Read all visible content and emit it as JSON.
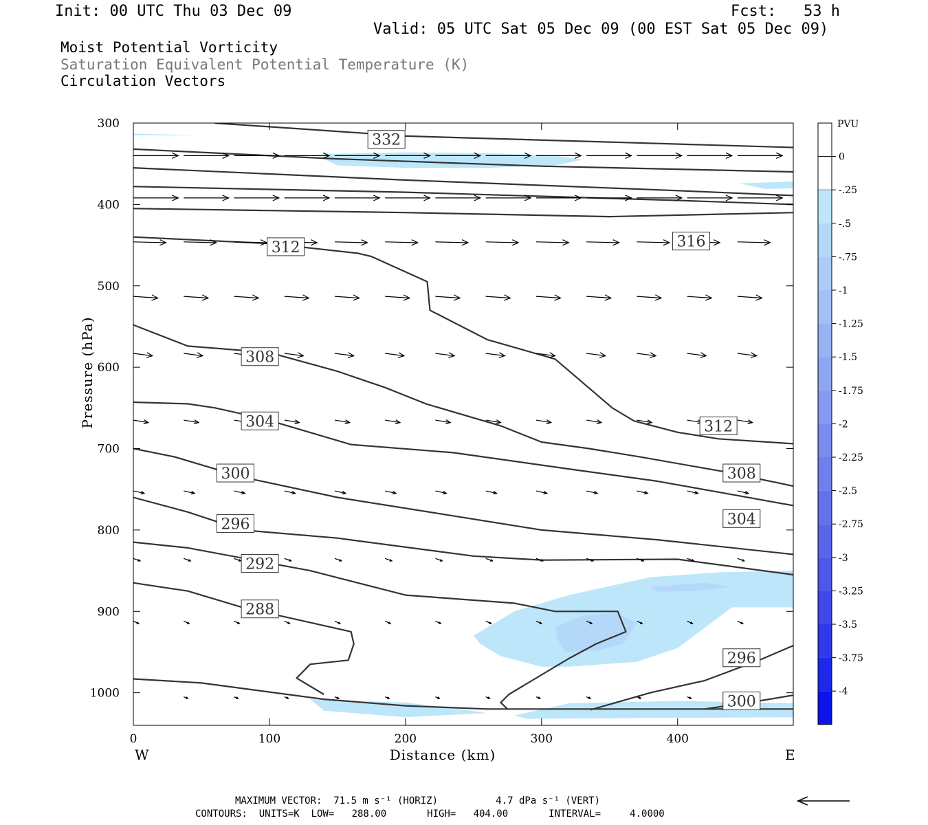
{
  "header": {
    "init": "Init: 00 UTC Thu 03 Dec 09",
    "fcst": "Fcst:   53 h",
    "valid": "Valid: 05 UTC Sat 05 Dec 09 (00 EST Sat 05 Dec 09)"
  },
  "titles": {
    "line1": "Moist Potential Vorticity",
    "line2": "Saturation Equivalent Potential Temperature (K)",
    "line3": "Circulation Vectors"
  },
  "footer": {
    "max_vector": "MAXIMUM VECTOR:  71.5 m s⁻¹ (HORIZ)          4.7 dPa s⁻¹ (VERT)",
    "contours": "CONTOURS:  UNITS=K  LOW=   288.00       HIGH=   404.00       INTERVAL=     4.0000"
  },
  "colors": {
    "mpv_light": "#bde6fb",
    "mpv_mid": "#a8c6f5",
    "contour": "#333333",
    "vector": "#000000"
  },
  "chart_data": {
    "type": "cross-section",
    "xlabel": "Distance (km)",
    "ylabel": "Pressure (hPa)",
    "xlim": [
      0,
      485
    ],
    "ylim": [
      1040,
      300
    ],
    "x_ticks": [
      0,
      100,
      200,
      300,
      400
    ],
    "y_ticks": [
      300,
      400,
      500,
      600,
      700,
      800,
      900,
      1000
    ],
    "end_labels": {
      "left": "W",
      "right": "E"
    },
    "colorbar": {
      "units": "PVU",
      "labels": [
        "0",
        "-.25",
        "-.5",
        "-.75",
        "-1",
        "-1.25",
        "-1.5",
        "-1.75",
        "-2",
        "-2.25",
        "-2.5",
        "-2.75",
        "-3",
        "-3.25",
        "-3.5",
        "-3.75",
        "-4"
      ],
      "colors": [
        "#ffffff",
        "#ffffff",
        "#bde6fb",
        "#b4d8f9",
        "#abccf7",
        "#a2c0f5",
        "#98b3f3",
        "#8ea6f1",
        "#8499ef",
        "#7a8ced",
        "#6f7fec",
        "#6472ea",
        "#5965e9",
        "#4d57e8",
        "#3f49e8",
        "#2f39e9",
        "#1e28ea",
        "#0a14eb"
      ]
    },
    "mpv_regions": [
      {
        "level": "-.25",
        "points": [
          [
            0,
            313
          ],
          [
            50,
            315
          ],
          [
            0,
            315
          ]
        ]
      },
      {
        "level": "-.25",
        "points": [
          [
            140,
            338
          ],
          [
            200,
            336
          ],
          [
            260,
            337
          ],
          [
            310,
            340
          ],
          [
            330,
            345
          ],
          [
            310,
            352
          ],
          [
            260,
            355
          ],
          [
            200,
            355
          ],
          [
            150,
            352
          ],
          [
            140,
            344
          ]
        ]
      },
      {
        "level": "-.25",
        "points": [
          [
            445,
            374
          ],
          [
            485,
            372
          ],
          [
            485,
            380
          ],
          [
            465,
            381
          ]
        ]
      },
      {
        "level": "-.25",
        "points": [
          [
            250,
            930
          ],
          [
            280,
            900
          ],
          [
            320,
            880
          ],
          [
            380,
            858
          ],
          [
            430,
            852
          ],
          [
            485,
            850
          ],
          [
            485,
            895
          ],
          [
            440,
            895
          ],
          [
            420,
            920
          ],
          [
            400,
            945
          ],
          [
            370,
            962
          ],
          [
            320,
            968
          ],
          [
            300,
            968
          ],
          [
            270,
            955
          ],
          [
            255,
            940
          ]
        ]
      },
      {
        "level": "-.5",
        "points": [
          [
            310,
            920
          ],
          [
            330,
            905
          ],
          [
            355,
            902
          ],
          [
            370,
            915
          ],
          [
            360,
            940
          ],
          [
            340,
            948
          ],
          [
            318,
            950
          ],
          [
            312,
            935
          ]
        ]
      },
      {
        "level": "-.5",
        "points": [
          [
            380,
            870
          ],
          [
            420,
            865
          ],
          [
            440,
            870
          ],
          [
            410,
            875
          ],
          [
            385,
            876
          ]
        ]
      },
      {
        "level": "-.25",
        "points": [
          [
            130,
            1008
          ],
          [
            200,
            1012
          ],
          [
            240,
            1020
          ],
          [
            260,
            1025
          ],
          [
            200,
            1030
          ],
          [
            140,
            1022
          ]
        ]
      },
      {
        "level": "-.25",
        "points": [
          [
            280,
            1028
          ],
          [
            320,
            1013
          ],
          [
            400,
            1010
          ],
          [
            485,
            1013
          ],
          [
            485,
            1030
          ],
          [
            290,
            1032
          ]
        ]
      }
    ],
    "contours": [
      {
        "points": [
          [
            60,
            300
          ],
          [
            200,
            316
          ],
          [
            485,
            330
          ]
        ]
      },
      {
        "points": [
          [
            0,
            332
          ],
          [
            150,
            344
          ],
          [
            300,
            353
          ],
          [
            485,
            360
          ]
        ]
      },
      {
        "points": [
          [
            0,
            355
          ],
          [
            200,
            370
          ],
          [
            400,
            383
          ],
          [
            485,
            389
          ]
        ]
      },
      {
        "points": [
          [
            0,
            378
          ],
          [
            200,
            385
          ],
          [
            400,
            395
          ],
          [
            485,
            400
          ]
        ]
      },
      {
        "points": [
          [
            0,
            405
          ],
          [
            200,
            410
          ],
          [
            350,
            415
          ],
          [
            485,
            410
          ]
        ]
      },
      {
        "points": [
          [
            0,
            440
          ],
          [
            100,
            448
          ],
          [
            165,
            460
          ],
          [
            175,
            464
          ],
          [
            216,
            495
          ],
          [
            218,
            530
          ],
          [
            260,
            566
          ],
          [
            310,
            590
          ],
          [
            352,
            650
          ],
          [
            368,
            666
          ],
          [
            400,
            680
          ],
          [
            430,
            688
          ],
          [
            485,
            694
          ]
        ]
      },
      {
        "points": [
          [
            0,
            548
          ],
          [
            40,
            574
          ],
          [
            100,
            582
          ],
          [
            150,
            605
          ],
          [
            185,
            625
          ],
          [
            215,
            645
          ],
          [
            270,
            672
          ],
          [
            300,
            692
          ],
          [
            335,
            700
          ],
          [
            372,
            710
          ],
          [
            433,
            728
          ],
          [
            485,
            746
          ]
        ]
      },
      {
        "points": [
          [
            0,
            643
          ],
          [
            40,
            645
          ],
          [
            60,
            650
          ],
          [
            95,
            663
          ],
          [
            160,
            695
          ],
          [
            235,
            705
          ],
          [
            320,
            725
          ],
          [
            385,
            740
          ],
          [
            435,
            755
          ],
          [
            485,
            770
          ]
        ]
      },
      {
        "points": [
          [
            0,
            700
          ],
          [
            30,
            710
          ],
          [
            80,
            735
          ],
          [
            150,
            760
          ],
          [
            225,
            780
          ],
          [
            300,
            800
          ],
          [
            385,
            812
          ],
          [
            485,
            830
          ]
        ]
      },
      {
        "points": [
          [
            0,
            760
          ],
          [
            40,
            778
          ],
          [
            80,
            800
          ],
          [
            150,
            810
          ],
          [
            250,
            832
          ],
          [
            300,
            837
          ],
          [
            400,
            836
          ],
          [
            485,
            855
          ]
        ]
      },
      {
        "points": [
          [
            0,
            815
          ],
          [
            40,
            822
          ],
          [
            130,
            850
          ],
          [
            200,
            880
          ],
          [
            280,
            890
          ],
          [
            310,
            900
          ],
          [
            340,
            900
          ],
          [
            356,
            900
          ],
          [
            362,
            925
          ],
          [
            340,
            940
          ],
          [
            320,
            958
          ],
          [
            276,
            1002
          ],
          [
            270,
            1012
          ],
          [
            275,
            1020
          ]
        ]
      },
      {
        "points": [
          [
            0,
            865
          ],
          [
            40,
            875
          ],
          [
            80,
            895
          ],
          [
            120,
            910
          ],
          [
            160,
            925
          ],
          [
            162,
            940
          ],
          [
            158,
            960
          ],
          [
            130,
            965
          ],
          [
            120,
            982
          ],
          [
            140,
            1002
          ]
        ]
      },
      {
        "points": [
          [
            336,
            1021
          ],
          [
            380,
            1000
          ],
          [
            420,
            985
          ],
          [
            460,
            960
          ],
          [
            485,
            942
          ]
        ]
      },
      {
        "points": [
          [
            420,
            1020
          ],
          [
            460,
            1010
          ],
          [
            485,
            1003
          ]
        ]
      },
      {
        "points": [
          [
            0,
            983
          ],
          [
            50,
            988
          ],
          [
            140,
            1008
          ],
          [
            200,
            1016
          ],
          [
            260,
            1020
          ],
          [
            485,
            1020
          ]
        ]
      }
    ],
    "contour_labels": [
      {
        "text": "332",
        "x": 186,
        "y": 320
      },
      {
        "text": "312",
        "x": 112,
        "y": 452
      },
      {
        "text": "316",
        "x": 410,
        "y": 445
      },
      {
        "text": "308",
        "x": 93,
        "y": 587
      },
      {
        "text": "304",
        "x": 93,
        "y": 666
      },
      {
        "text": "312",
        "x": 430,
        "y": 672
      },
      {
        "text": "300",
        "x": 75,
        "y": 730
      },
      {
        "text": "308",
        "x": 447,
        "y": 730
      },
      {
        "text": "296",
        "x": 75,
        "y": 792
      },
      {
        "text": "304",
        "x": 447,
        "y": 786
      },
      {
        "text": "292",
        "x": 93,
        "y": 841
      },
      {
        "text": "288",
        "x": 93,
        "y": 897
      },
      {
        "text": "296",
        "x": 447,
        "y": 957
      },
      {
        "text": "300",
        "x": 447,
        "y": 1010
      }
    ],
    "vector_rows": [
      {
        "p": 340,
        "xs": [
          0,
          37,
          74,
          111,
          148,
          185,
          222,
          259,
          296,
          333,
          370,
          407,
          444
        ],
        "u": 33,
        "w": 0
      },
      {
        "p": 392,
        "xs": [
          0,
          37,
          74,
          111,
          148,
          185,
          222,
          259,
          296,
          333,
          370,
          407,
          444
        ],
        "u": 33,
        "w": 0
      },
      {
        "p": 446,
        "xs": [
          0,
          37,
          74,
          111,
          148,
          185,
          222,
          259,
          296,
          333,
          370,
          407,
          444
        ],
        "u": 24,
        "w": -1
      },
      {
        "p": 513,
        "xs": [
          0,
          37,
          74,
          111,
          148,
          185,
          222,
          259,
          296,
          333,
          370,
          407,
          444
        ],
        "u": 18,
        "w": -2
      },
      {
        "p": 583,
        "xs": [
          0,
          37,
          74,
          111,
          148,
          185,
          222,
          259,
          296,
          333,
          370,
          407,
          444
        ],
        "u": 14,
        "w": -3
      },
      {
        "p": 665,
        "xs": [
          0,
          37,
          74,
          111,
          148,
          185,
          222,
          259,
          296,
          333,
          370,
          407,
          444
        ],
        "u": 11,
        "w": -3
      },
      {
        "p": 752,
        "xs": [
          0,
          37,
          74,
          111,
          148,
          185,
          222,
          259,
          296,
          333,
          370,
          407,
          444
        ],
        "u": 8,
        "w": -3
      },
      {
        "p": 835,
        "xs": [
          0,
          37,
          74,
          111,
          148,
          185,
          222,
          259,
          296,
          333,
          370,
          407,
          444
        ],
        "u": 5,
        "w": -3
      },
      {
        "p": 912,
        "xs": [
          0,
          37,
          74,
          111,
          148,
          185,
          222,
          259,
          296,
          333,
          370,
          407,
          444
        ],
        "u": 4,
        "w": -3
      },
      {
        "p": 1005,
        "xs": [
          37,
          74,
          111,
          148,
          185,
          222,
          259,
          296,
          333,
          370,
          407,
          444
        ],
        "u": 3,
        "w": -2
      }
    ],
    "reference_vector_km": 38
  }
}
